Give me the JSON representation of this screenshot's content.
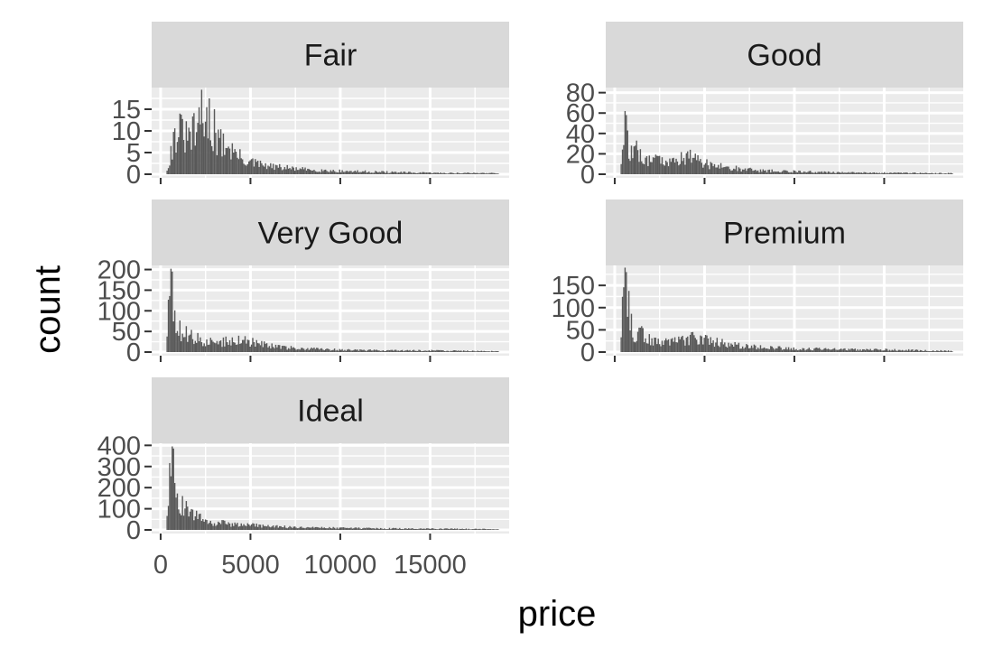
{
  "chart_data": {
    "type": "bar",
    "facet_by": "cut",
    "x_label": "price",
    "y_label": "count",
    "x_ticks": [
      0,
      5000,
      10000,
      15000
    ],
    "x_tick_labels": [
      "0",
      "5000",
      "10000",
      "15000"
    ],
    "xlim": [
      -500,
      19400
    ],
    "x_range": [
      326,
      18823
    ],
    "grid": true,
    "panels": [
      {
        "name": "Fair",
        "ylim": [
          0,
          20
        ],
        "y_ticks": [
          0,
          5,
          10,
          15
        ],
        "profile": [
          [
            326,
            0.5
          ],
          [
            400,
            2
          ],
          [
            600,
            6
          ],
          [
            800,
            10
          ],
          [
            1000,
            11
          ],
          [
            1500,
            9
          ],
          [
            2200,
            12
          ],
          [
            2600,
            13
          ],
          [
            3000,
            8
          ],
          [
            3500,
            8
          ],
          [
            4000,
            6
          ],
          [
            4500,
            4
          ],
          [
            5000,
            3
          ],
          [
            6000,
            2
          ],
          [
            7000,
            1.6
          ],
          [
            8000,
            1.2
          ],
          [
            10000,
            0.8
          ],
          [
            12000,
            0.6
          ],
          [
            14000,
            0.4
          ],
          [
            16000,
            0.3
          ],
          [
            18823,
            0.3
          ]
        ],
        "peaks": [
          [
            2300,
            19.5
          ],
          [
            2700,
            17.5
          ],
          [
            1100,
            14
          ],
          [
            3000,
            15
          ]
        ]
      },
      {
        "name": "Good",
        "ylim": [
          0,
          85
        ],
        "y_ticks": [
          0,
          20,
          40,
          60,
          80
        ],
        "profile": [
          [
            326,
            5
          ],
          [
            450,
            35
          ],
          [
            560,
            50
          ],
          [
            650,
            38
          ],
          [
            800,
            28
          ],
          [
            1000,
            22
          ],
          [
            1500,
            18
          ],
          [
            2000,
            16
          ],
          [
            3000,
            15
          ],
          [
            4000,
            18
          ],
          [
            4500,
            17
          ],
          [
            5000,
            12
          ],
          [
            6000,
            8
          ],
          [
            7000,
            6
          ],
          [
            8000,
            4
          ],
          [
            10000,
            3
          ],
          [
            12000,
            2
          ],
          [
            15000,
            1.5
          ],
          [
            18823,
            1
          ]
        ],
        "peaks": [
          [
            560,
            62
          ],
          [
            620,
            58
          ],
          [
            1200,
            33
          ],
          [
            4200,
            24
          ]
        ]
      },
      {
        "name": "Very Good",
        "ylim": [
          0,
          210
        ],
        "y_ticks": [
          0,
          50,
          100,
          150,
          200
        ],
        "profile": [
          [
            326,
            10
          ],
          [
            450,
            140
          ],
          [
            600,
            190
          ],
          [
            700,
            160
          ],
          [
            800,
            110
          ],
          [
            900,
            75
          ],
          [
            1000,
            60
          ],
          [
            1500,
            45
          ],
          [
            2000,
            35
          ],
          [
            3000,
            25
          ],
          [
            4000,
            32
          ],
          [
            4500,
            38
          ],
          [
            5000,
            28
          ],
          [
            6000,
            18
          ],
          [
            7000,
            12
          ],
          [
            8000,
            9
          ],
          [
            10000,
            6
          ],
          [
            12000,
            5
          ],
          [
            15000,
            4
          ],
          [
            18823,
            2
          ]
        ],
        "peaks": [
          [
            600,
            202
          ],
          [
            650,
            195
          ]
        ]
      },
      {
        "name": "Premium",
        "ylim": [
          0,
          195
        ],
        "y_ticks": [
          0,
          50,
          100,
          150
        ],
        "profile": [
          [
            326,
            10
          ],
          [
            450,
            110
          ],
          [
            550,
            165
          ],
          [
            650,
            150
          ],
          [
            800,
            110
          ],
          [
            900,
            80
          ],
          [
            1000,
            55
          ],
          [
            1200,
            40
          ],
          [
            1500,
            45
          ],
          [
            2000,
            30
          ],
          [
            3000,
            22
          ],
          [
            4000,
            30
          ],
          [
            4500,
            38
          ],
          [
            5000,
            30
          ],
          [
            6000,
            22
          ],
          [
            7000,
            16
          ],
          [
            8000,
            12
          ],
          [
            10000,
            9
          ],
          [
            12000,
            7
          ],
          [
            15000,
            6
          ],
          [
            18823,
            3
          ]
        ],
        "peaks": [
          [
            600,
            190
          ],
          [
            660,
            180
          ],
          [
            1400,
            55
          ]
        ]
      },
      {
        "name": "Ideal",
        "ylim": [
          0,
          410
        ],
        "y_ticks": [
          0,
          100,
          200,
          300,
          400
        ],
        "profile": [
          [
            326,
            20
          ],
          [
            450,
            200
          ],
          [
            600,
            360
          ],
          [
            700,
            380
          ],
          [
            800,
            330
          ],
          [
            900,
            250
          ],
          [
            1000,
            180
          ],
          [
            1100,
            140
          ],
          [
            1300,
            110
          ],
          [
            1600,
            90
          ],
          [
            2000,
            70
          ],
          [
            2500,
            55
          ],
          [
            3000,
            40
          ],
          [
            4000,
            30
          ],
          [
            5000,
            25
          ],
          [
            6000,
            20
          ],
          [
            7000,
            15
          ],
          [
            8000,
            12
          ],
          [
            10000,
            10
          ],
          [
            12000,
            8
          ],
          [
            15000,
            6
          ],
          [
            18823,
            4
          ]
        ],
        "peaks": [
          [
            680,
            395
          ],
          [
            740,
            385
          ]
        ]
      }
    ]
  }
}
